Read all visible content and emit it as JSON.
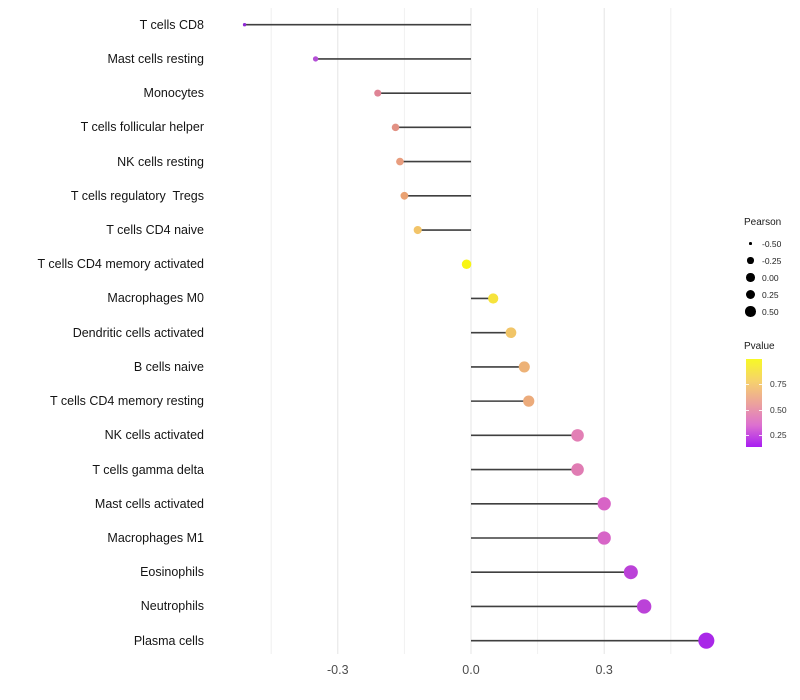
{
  "chart_data": {
    "type": "lollipop",
    "title": "",
    "xlabel": "",
    "ylabel": "",
    "xlim": [
      -0.585,
      0.555
    ],
    "baseline": 0.0,
    "grid": "on",
    "x_ticks": [
      {
        "value": -0.3,
        "label": "-0.3"
      },
      {
        "value": 0.0,
        "label": "0.0"
      },
      {
        "value": 0.3,
        "label": "0.3"
      }
    ],
    "x_minor_gridlines": [
      -0.45,
      -0.15,
      0.15,
      0.45
    ],
    "categories": [
      "T cells CD8",
      "Mast cells resting",
      "Monocytes",
      "T cells follicular helper",
      "NK cells resting",
      "T cells regulatory  Tregs",
      "T cells CD4 naive",
      "T cells CD4 memory activated",
      "Macrophages M0",
      "Dendritic cells activated",
      "B cells naive",
      "T cells CD4 memory resting",
      "NK cells activated",
      "T cells gamma delta",
      "Mast cells activated",
      "Macrophages M1",
      "Eosinophils",
      "Neutrophils",
      "Plasma cells"
    ],
    "points": [
      {
        "label": "T cells CD8",
        "pearson": -0.51,
        "color": "#8f29d4"
      },
      {
        "label": "Mast cells resting",
        "pearson": -0.35,
        "color": "#b44fd6"
      },
      {
        "label": "Monocytes",
        "pearson": -0.21,
        "color": "#df8495"
      },
      {
        "label": "T cells follicular helper",
        "pearson": -0.17,
        "color": "#e29184"
      },
      {
        "label": "NK cells resting",
        "pearson": -0.16,
        "color": "#e89d7e"
      },
      {
        "label": "T cells regulatory  Tregs",
        "pearson": -0.15,
        "color": "#eaa273"
      },
      {
        "label": "T cells CD4 naive",
        "pearson": -0.12,
        "color": "#f2c469"
      },
      {
        "label": "T cells CD4 memory activated",
        "pearson": -0.01,
        "color": "#f8f513"
      },
      {
        "label": "Macrophages M0",
        "pearson": 0.05,
        "color": "#f6e33c"
      },
      {
        "label": "Dendritic cells activated",
        "pearson": 0.09,
        "color": "#f1c568"
      },
      {
        "label": "B cells naive",
        "pearson": 0.12,
        "color": "#edb277"
      },
      {
        "label": "T cells CD4 memory resting",
        "pearson": 0.13,
        "color": "#ecab7b"
      },
      {
        "label": "NK cells activated",
        "pearson": 0.24,
        "color": "#e27fb5"
      },
      {
        "label": "T cells gamma delta",
        "pearson": 0.24,
        "color": "#e07cb3"
      },
      {
        "label": "Mast cells activated",
        "pearson": 0.3,
        "color": "#d863c6"
      },
      {
        "label": "Macrophages M1",
        "pearson": 0.3,
        "color": "#d765c7"
      },
      {
        "label": "Eosinophils",
        "pearson": 0.36,
        "color": "#bb42d8"
      },
      {
        "label": "Neutrophils",
        "pearson": 0.39,
        "color": "#bb42d8"
      },
      {
        "label": "Plasma cells",
        "pearson": 0.53,
        "color": "#a928e8"
      }
    ],
    "legend_size": {
      "title": "Pearson",
      "items": [
        {
          "label": "-0.50",
          "value": -0.5
        },
        {
          "label": "-0.25",
          "value": -0.25
        },
        {
          "label": "0.00",
          "value": 0.0
        },
        {
          "label": "0.25",
          "value": 0.25
        },
        {
          "label": "0.50",
          "value": 0.5
        }
      ]
    },
    "legend_color": {
      "title": "Pvalue",
      "gradient_top_to_bottom": [
        "#f7f926",
        "#f6d26c",
        "#eca39b",
        "#dd71cf",
        "#a81df2"
      ],
      "ticks": [
        {
          "label": "0.75",
          "pos": 0.284
        },
        {
          "label": "0.50",
          "pos": 0.58
        },
        {
          "label": "0.25",
          "pos": 0.864
        }
      ]
    },
    "style": {
      "stem_color": "#3f3f3f",
      "major_grid_color": "#e4e4e4",
      "minor_grid_color": "#f0f0f0",
      "axis_text_color": "#4d4d4d",
      "label_text_color": "#141414",
      "legend_dot_color": "#000000"
    }
  }
}
